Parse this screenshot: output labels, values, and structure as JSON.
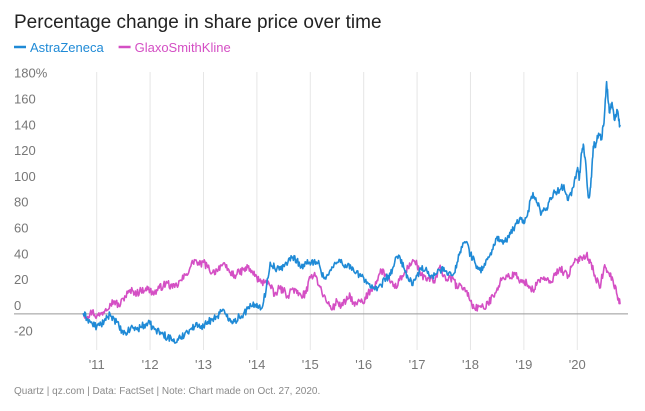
{
  "chart_data": {
    "type": "line",
    "title": "Percentage change in share price over time",
    "xlabel": "",
    "ylabel": "",
    "x_tick_labels": [
      "'11",
      "'12",
      "'13",
      "'14",
      "'15",
      "'16",
      "'17",
      "'18",
      "'19",
      "'20"
    ],
    "x_tick_years": [
      2011,
      2012,
      2013,
      2014,
      2015,
      2016,
      2017,
      2018,
      2019,
      2020
    ],
    "xlim": [
      2010.5,
      2020.95
    ],
    "y_tick_labels": [
      "-20",
      "0",
      "20",
      "40",
      "60",
      "80",
      "100",
      "120",
      "140",
      "160",
      "180%"
    ],
    "y_tick_values": [
      -20,
      0,
      20,
      40,
      60,
      80,
      100,
      120,
      140,
      160,
      180
    ],
    "ylim": [
      -28,
      186
    ],
    "grid": "vertical",
    "legend_position": "top-left",
    "series": [
      {
        "name": "AstraZeneca",
        "color": "#1f8ad6",
        "x": [
          2010.75,
          2010.83,
          2010.92,
          2011.0,
          2011.08,
          2011.17,
          2011.25,
          2011.33,
          2011.42,
          2011.5,
          2011.58,
          2011.67,
          2011.75,
          2011.83,
          2011.92,
          2012.0,
          2012.08,
          2012.17,
          2012.25,
          2012.33,
          2012.42,
          2012.5,
          2012.58,
          2012.67,
          2012.75,
          2012.83,
          2012.92,
          2013.0,
          2013.08,
          2013.17,
          2013.25,
          2013.33,
          2013.42,
          2013.5,
          2013.58,
          2013.67,
          2013.75,
          2013.83,
          2013.92,
          2014.0,
          2014.08,
          2014.17,
          2014.25,
          2014.33,
          2014.42,
          2014.5,
          2014.58,
          2014.67,
          2014.75,
          2014.83,
          2014.92,
          2015.0,
          2015.08,
          2015.17,
          2015.25,
          2015.33,
          2015.42,
          2015.5,
          2015.58,
          2015.67,
          2015.75,
          2015.83,
          2015.92,
          2016.0,
          2016.08,
          2016.17,
          2016.25,
          2016.33,
          2016.42,
          2016.5,
          2016.58,
          2016.67,
          2016.75,
          2016.83,
          2016.92,
          2017.0,
          2017.08,
          2017.17,
          2017.25,
          2017.33,
          2017.42,
          2017.5,
          2017.58,
          2017.67,
          2017.75,
          2017.83,
          2017.92,
          2018.0,
          2018.08,
          2018.17,
          2018.25,
          2018.33,
          2018.42,
          2018.5,
          2018.58,
          2018.67,
          2018.75,
          2018.83,
          2018.92,
          2019.0,
          2019.08,
          2019.17,
          2019.25,
          2019.33,
          2019.42,
          2019.5,
          2019.58,
          2019.67,
          2019.75,
          2019.83,
          2019.92,
          2020.0,
          2020.04,
          2020.08,
          2020.12,
          2020.17,
          2020.21,
          2020.25,
          2020.3,
          2020.35,
          2020.4,
          2020.45,
          2020.5,
          2020.55,
          2020.6,
          2020.65,
          2020.7,
          2020.75,
          2020.8
        ],
        "values": [
          0,
          -4,
          -8,
          -10,
          -8,
          -5,
          0,
          -4,
          -10,
          -16,
          -14,
          -10,
          -12,
          -10,
          -8,
          -8,
          -12,
          -14,
          -16,
          -18,
          -20,
          -22,
          -18,
          -14,
          -12,
          -10,
          -8,
          -10,
          -6,
          -4,
          -2,
          2,
          0,
          -4,
          -6,
          -2,
          0,
          4,
          6,
          8,
          4,
          18,
          40,
          36,
          34,
          38,
          40,
          44,
          42,
          36,
          40,
          38,
          42,
          38,
          28,
          30,
          36,
          40,
          42,
          36,
          38,
          32,
          30,
          28,
          24,
          20,
          18,
          22,
          28,
          30,
          40,
          45,
          36,
          28,
          22,
          30,
          34,
          36,
          28,
          30,
          34,
          36,
          30,
          30,
          40,
          52,
          56,
          46,
          40,
          34,
          36,
          44,
          50,
          60,
          56,
          56,
          62,
          68,
          74,
          70,
          80,
          94,
          86,
          78,
          82,
          90,
          94,
          96,
          100,
          88,
          98,
          112,
          105,
          125,
          130,
          110,
          90,
          98,
          130,
          132,
          140,
          136,
          148,
          180,
          156,
          164,
          150,
          158,
          146
        ]
      },
      {
        "name": "GlaxoSmithKline",
        "color": "#d44fc4",
        "x": [
          2010.75,
          2010.83,
          2010.92,
          2011.0,
          2011.08,
          2011.17,
          2011.25,
          2011.33,
          2011.42,
          2011.5,
          2011.58,
          2011.67,
          2011.75,
          2011.83,
          2011.92,
          2012.0,
          2012.08,
          2012.17,
          2012.25,
          2012.33,
          2012.42,
          2012.5,
          2012.58,
          2012.67,
          2012.75,
          2012.83,
          2012.92,
          2013.0,
          2013.08,
          2013.17,
          2013.25,
          2013.33,
          2013.42,
          2013.5,
          2013.58,
          2013.67,
          2013.75,
          2013.83,
          2013.92,
          2014.0,
          2014.08,
          2014.17,
          2014.25,
          2014.33,
          2014.42,
          2014.5,
          2014.58,
          2014.67,
          2014.75,
          2014.83,
          2014.92,
          2015.0,
          2015.08,
          2015.17,
          2015.25,
          2015.33,
          2015.42,
          2015.5,
          2015.58,
          2015.67,
          2015.75,
          2015.83,
          2015.92,
          2016.0,
          2016.08,
          2016.17,
          2016.25,
          2016.33,
          2016.42,
          2016.5,
          2016.58,
          2016.67,
          2016.75,
          2016.83,
          2016.92,
          2017.0,
          2017.08,
          2017.17,
          2017.25,
          2017.33,
          2017.42,
          2017.5,
          2017.58,
          2017.67,
          2017.75,
          2017.83,
          2017.92,
          2018.0,
          2018.08,
          2018.17,
          2018.25,
          2018.33,
          2018.42,
          2018.5,
          2018.58,
          2018.67,
          2018.75,
          2018.83,
          2018.92,
          2019.0,
          2019.08,
          2019.17,
          2019.25,
          2019.33,
          2019.42,
          2019.5,
          2019.58,
          2019.67,
          2019.75,
          2019.83,
          2019.92,
          2020.0,
          2020.08,
          2020.17,
          2020.25,
          2020.33,
          2020.42,
          2020.5,
          2020.58,
          2020.67,
          2020.75,
          2020.8
        ],
        "values": [
          0,
          -2,
          2,
          -2,
          0,
          4,
          8,
          10,
          6,
          12,
          16,
          18,
          16,
          18,
          20,
          18,
          16,
          20,
          22,
          24,
          20,
          22,
          26,
          30,
          36,
          42,
          38,
          40,
          36,
          32,
          34,
          38,
          36,
          32,
          30,
          32,
          34,
          36,
          32,
          28,
          24,
          26,
          22,
          14,
          20,
          18,
          14,
          20,
          16,
          14,
          16,
          28,
          32,
          22,
          14,
          8,
          4,
          10,
          6,
          10,
          14,
          6,
          10,
          8,
          16,
          20,
          26,
          34,
          30,
          24,
          20,
          26,
          30,
          36,
          42,
          38,
          30,
          26,
          28,
          24,
          36,
          30,
          26,
          28,
          20,
          22,
          18,
          10,
          4,
          6,
          4,
          8,
          14,
          20,
          26,
          30,
          28,
          32,
          24,
          26,
          22,
          18,
          24,
          28,
          26,
          24,
          30,
          36,
          32,
          30,
          38,
          42,
          44,
          46,
          40,
          30,
          20,
          36,
          32,
          26,
          14,
          8
        ]
      }
    ]
  },
  "footer": {
    "source_text": "Quartz | qz.com | Data: FactSet | Note: Chart made on Oct. 27, 2020."
  },
  "colors": {
    "grid": "#e6e6e6",
    "zero_line": "#999999",
    "tick_text": "#777777"
  }
}
